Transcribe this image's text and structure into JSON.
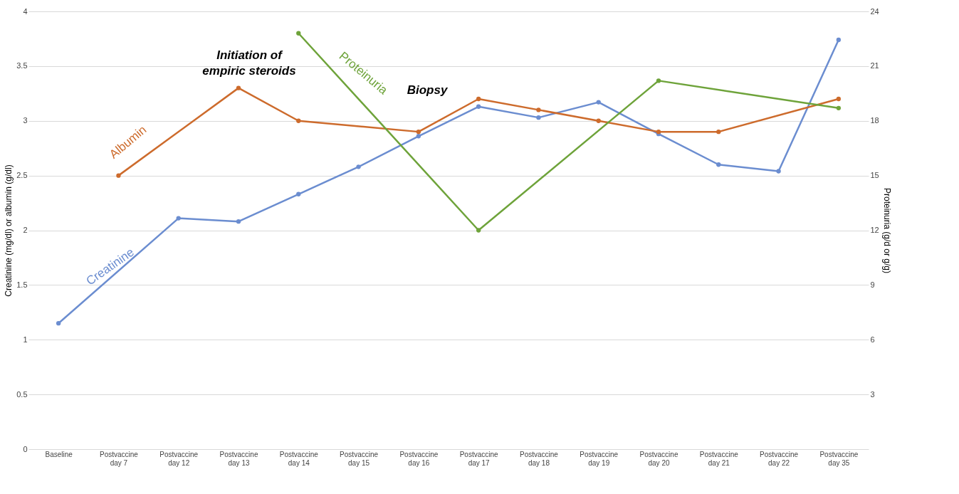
{
  "chart_data": {
    "type": "line",
    "categories": [
      "Baseline",
      "Postvaccine day 7",
      "Postvaccine day 12",
      "Postvaccine day 13",
      "Postvaccine day 14",
      "Postvaccine day 15",
      "Postvaccine day 16",
      "Postvaccine day 17",
      "Postvaccine day 18",
      "Postvaccine day 19",
      "Postvaccine day 20",
      "Postvaccine day 21",
      "Postvaccine day 22",
      "Postvaccine day 35"
    ],
    "series": [
      {
        "name": "Creatinine",
        "color": "#6b8dd0",
        "values": [
          1.15,
          null,
          2.11,
          2.08,
          2.33,
          2.58,
          2.86,
          3.13,
          3.03,
          3.17,
          2.88,
          2.6,
          2.54,
          3.74
        ]
      },
      {
        "name": "Albumin",
        "color": "#cd6b2c",
        "values": [
          null,
          2.5,
          null,
          3.3,
          3.0,
          null,
          2.9,
          3.2,
          3.1,
          3.0,
          2.9,
          2.9,
          null,
          3.2
        ]
      },
      {
        "name": "Proteinuria",
        "color": "#6ea33a",
        "axis": "y2",
        "values": [
          null,
          null,
          null,
          null,
          22.8,
          null,
          null,
          12.0,
          null,
          null,
          20.2,
          null,
          null,
          18.7
        ]
      }
    ],
    "ylabel": "Creatinine (mg/dl) or albumin (g/dl)",
    "y2label": "Proteinuria (g/d or g/g)",
    "ylim": [
      0,
      4
    ],
    "yticks": [
      0,
      0.5,
      1,
      1.5,
      2,
      2.5,
      3,
      3.5,
      4
    ],
    "y2lim": [
      0,
      24
    ],
    "y2ticks": [
      3,
      6,
      9,
      12,
      15,
      18,
      21,
      24
    ],
    "annotations": [
      "Initiation of empiric steroids",
      "Biopsy"
    ],
    "grid": "y",
    "marker": "circle",
    "line_style": "solid"
  }
}
